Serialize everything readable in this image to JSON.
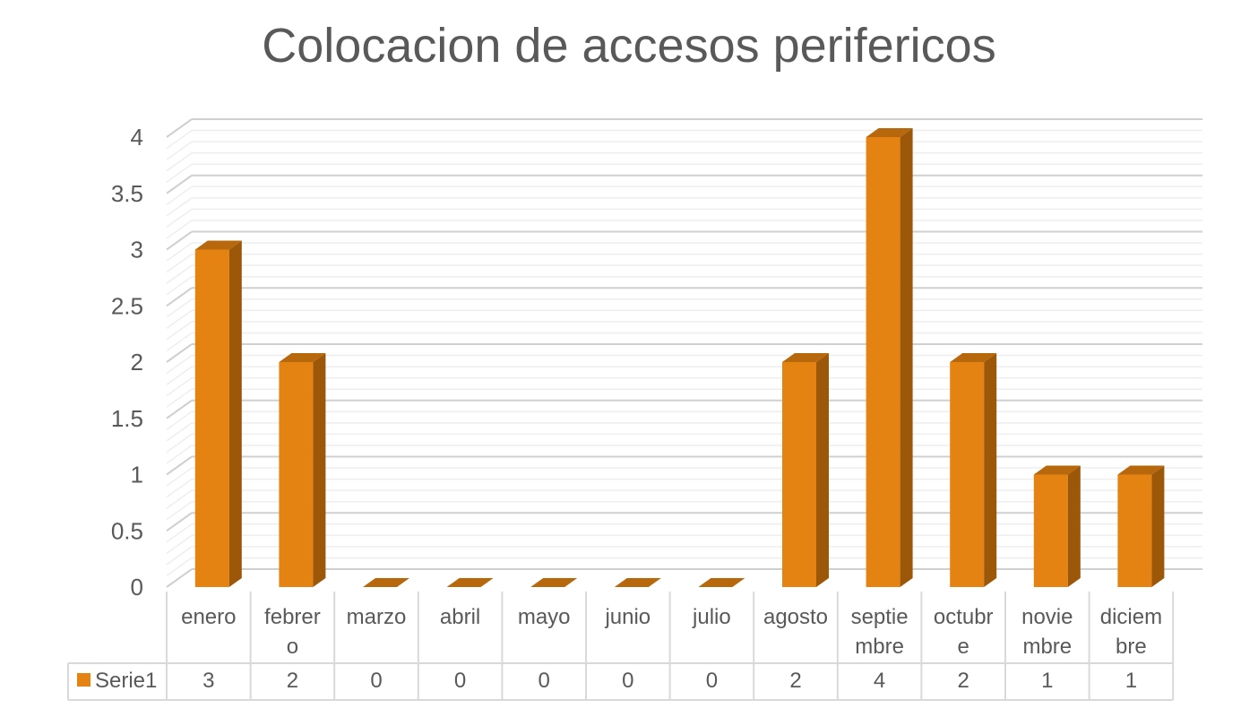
{
  "chart_data": {
    "type": "bar",
    "title": "Colocacion de accesos perifericos",
    "categories": [
      [
        "enero"
      ],
      [
        "febrer",
        "o"
      ],
      [
        "marzo"
      ],
      [
        "abril"
      ],
      [
        "mayo"
      ],
      [
        "junio"
      ],
      [
        "julio"
      ],
      [
        "agosto"
      ],
      [
        "septie",
        "mbre"
      ],
      [
        "octubr",
        "e"
      ],
      [
        "novie",
        "mbre"
      ],
      [
        "diciem",
        "bre"
      ]
    ],
    "series": [
      {
        "name": "Serie1",
        "values": [
          3,
          2,
          0,
          0,
          0,
          0,
          0,
          2,
          4,
          2,
          1,
          1
        ]
      }
    ],
    "table_values": [
      "3",
      "2",
      "0",
      "0",
      "0",
      "0",
      "0",
      "2",
      "4",
      "2",
      "1",
      "1"
    ],
    "ylim": [
      0,
      4
    ],
    "ytick_labels": [
      "0",
      "0.5",
      "1",
      "1.5",
      "2",
      "2.5",
      "3",
      "3.5",
      "4"
    ],
    "grid": true,
    "legend": "data-table",
    "render_3d": true,
    "colors": {
      "bar_front": "#E48312",
      "bar_side": "#9C5708",
      "bar_top": "#B8680C",
      "grid": "#D9D9D9",
      "text": "#595959",
      "table_line": "#D9D9D9"
    }
  }
}
